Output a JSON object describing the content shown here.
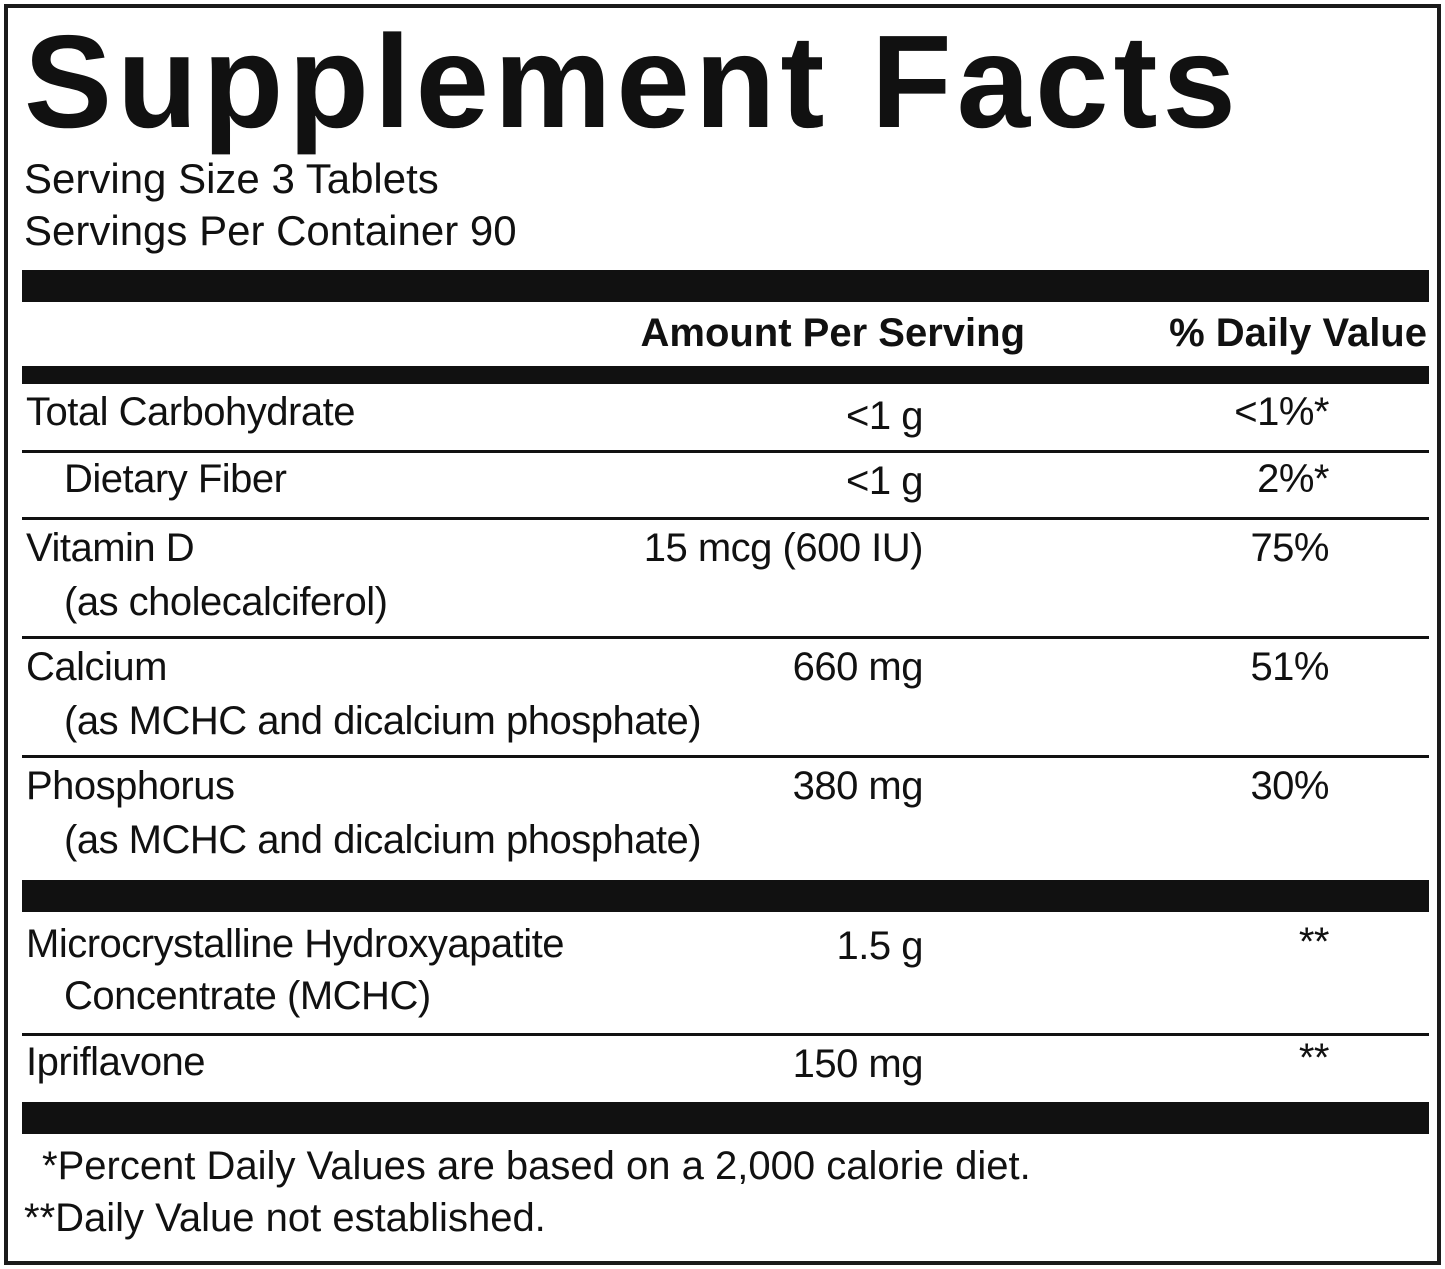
{
  "label": {
    "title": "Supplement Facts",
    "serving_size": "Serving Size 3 Tablets",
    "servings_per_container": "Servings Per Container 90",
    "header_amount": "Amount Per Serving",
    "header_daily_value": "% Daily Value"
  },
  "nutrients": [
    {
      "name": "Total Carbohydrate",
      "detail": "",
      "amount": "<1 g",
      "daily_value": "<1%*"
    },
    {
      "name": "Dietary Fiber",
      "detail": "",
      "amount": "<1 g",
      "daily_value": "2%*"
    },
    {
      "name": "Vitamin D",
      "detail": "(as cholecalciferol)",
      "amount": "15 mcg (600 IU)",
      "daily_value": "75%"
    },
    {
      "name": "Calcium",
      "detail": "(as MCHC and dicalcium phosphate)",
      "amount": "660 mg",
      "daily_value": "51%"
    },
    {
      "name": "Phosphorus",
      "detail": "(as MCHC and dicalcium phosphate)",
      "amount": "380 mg",
      "daily_value": "30%"
    }
  ],
  "other_ingredients": [
    {
      "name": "Microcrystalline Hydroxyapatite",
      "detail": "Concentrate (MCHC)",
      "amount": "1.5 g",
      "daily_value": "**"
    },
    {
      "name": "Ipriflavone",
      "detail": "",
      "amount": "150 mg",
      "daily_value": "**"
    }
  ],
  "footnotes": {
    "percent_note": "*Percent Daily Values are based on a 2,000 calorie diet.",
    "not_established": "**Daily Value not established."
  }
}
